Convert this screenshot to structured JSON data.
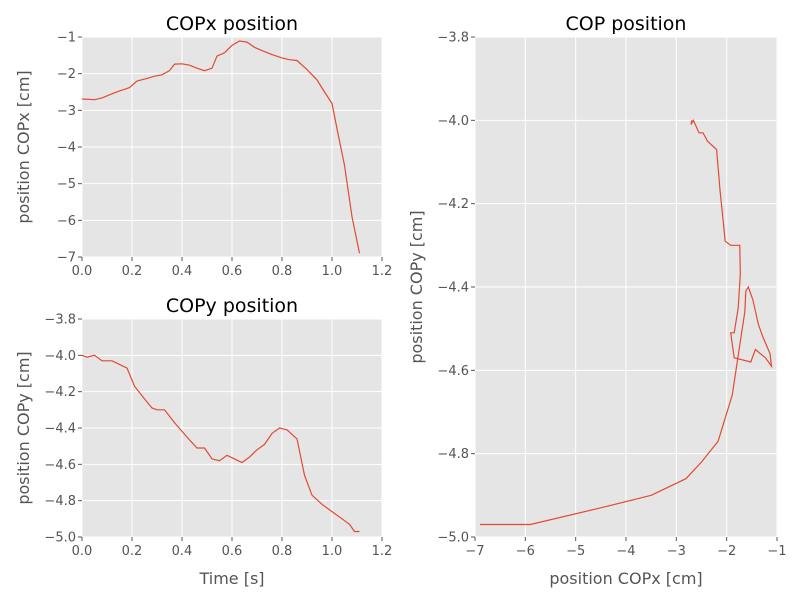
{
  "chart_data": [
    {
      "type": "line",
      "title": "COPx position",
      "xlabel": "",
      "ylabel": "position COPx [cm]",
      "xlim": [
        0,
        1.2
      ],
      "ylim": [
        -7,
        -1
      ],
      "xticks": [
        0.0,
        0.2,
        0.4,
        0.6,
        0.8,
        1.0,
        1.2
      ],
      "xtick_labels": [
        "0.0",
        "0.2",
        "0.4",
        "0.6",
        "0.8",
        "1.0",
        "1.2"
      ],
      "yticks": [
        -7,
        -6,
        -5,
        -4,
        -3,
        -2,
        -1
      ],
      "ytick_labels": [
        "−7",
        "−6",
        "−5",
        "−4",
        "−3",
        "−2",
        "−1"
      ],
      "grid": true,
      "color": "#e24a33",
      "x": [
        0.0,
        0.05,
        0.08,
        0.12,
        0.15,
        0.19,
        0.22,
        0.26,
        0.29,
        0.32,
        0.35,
        0.37,
        0.4,
        0.43,
        0.46,
        0.49,
        0.52,
        0.54,
        0.57,
        0.6,
        0.63,
        0.66,
        0.69,
        0.72,
        0.76,
        0.8,
        0.83,
        0.86,
        0.9,
        0.94,
        0.97,
        1.0,
        1.02,
        1.05,
        1.08,
        1.11
      ],
      "y": [
        -2.69,
        -2.71,
        -2.66,
        -2.55,
        -2.47,
        -2.38,
        -2.2,
        -2.13,
        -2.07,
        -2.03,
        -1.92,
        -1.74,
        -1.73,
        -1.77,
        -1.85,
        -1.92,
        -1.85,
        -1.52,
        -1.43,
        -1.23,
        -1.11,
        -1.14,
        -1.28,
        -1.37,
        -1.48,
        -1.57,
        -1.62,
        -1.64,
        -1.89,
        -2.17,
        -2.5,
        -2.81,
        -3.5,
        -4.5,
        -5.9,
        -6.9
      ]
    },
    {
      "type": "line",
      "title": "COPy position",
      "xlabel": "Time [s]",
      "ylabel": "position COPy [cm]",
      "xlim": [
        0,
        1.2
      ],
      "ylim": [
        -5.0,
        -3.8
      ],
      "xticks": [
        0.0,
        0.2,
        0.4,
        0.6,
        0.8,
        1.0,
        1.2
      ],
      "xtick_labels": [
        "0.0",
        "0.2",
        "0.4",
        "0.6",
        "0.8",
        "1.0",
        "1.2"
      ],
      "yticks": [
        -5.0,
        -4.8,
        -4.6,
        -4.4,
        -4.2,
        -4.0,
        -3.8
      ],
      "ytick_labels": [
        "−5.0",
        "−4.8",
        "−4.6",
        "−4.4",
        "−4.2",
        "−4.0",
        "−3.8"
      ],
      "grid": true,
      "color": "#e24a33",
      "x": [
        0.0,
        0.02,
        0.05,
        0.08,
        0.12,
        0.15,
        0.18,
        0.21,
        0.25,
        0.28,
        0.3,
        0.33,
        0.37,
        0.42,
        0.46,
        0.49,
        0.52,
        0.55,
        0.58,
        0.61,
        0.64,
        0.67,
        0.7,
        0.73,
        0.76,
        0.79,
        0.82,
        0.86,
        0.89,
        0.92,
        0.96,
        1.0,
        1.04,
        1.07,
        1.09,
        1.11
      ],
      "y": [
        -4.0,
        -4.01,
        -4.0,
        -4.03,
        -4.03,
        -4.05,
        -4.07,
        -4.17,
        -4.24,
        -4.29,
        -4.3,
        -4.3,
        -4.37,
        -4.45,
        -4.51,
        -4.51,
        -4.57,
        -4.58,
        -4.55,
        -4.57,
        -4.59,
        -4.56,
        -4.52,
        -4.49,
        -4.43,
        -4.4,
        -4.41,
        -4.46,
        -4.66,
        -4.77,
        -4.82,
        -4.86,
        -4.9,
        -4.93,
        -4.97,
        -4.97
      ]
    },
    {
      "type": "line",
      "title": "COP position",
      "xlabel": "position COPx [cm]",
      "ylabel": "position COPy [cm]",
      "xlim": [
        -7,
        -1
      ],
      "ylim": [
        -5.0,
        -3.8
      ],
      "xticks": [
        -7,
        -6,
        -5,
        -4,
        -3,
        -2,
        -1
      ],
      "xtick_labels": [
        "−7",
        "−6",
        "−5",
        "−4",
        "−3",
        "−2",
        "−1"
      ],
      "yticks": [
        -5.0,
        -4.8,
        -4.6,
        -4.4,
        -4.2,
        -4.0,
        -3.8
      ],
      "ytick_labels": [
        "−5.0",
        "−4.8",
        "−4.6",
        "−4.4",
        "−4.2",
        "−4.0",
        "−3.8"
      ],
      "grid": true,
      "color": "#e24a33",
      "x": [
        -2.69,
        -2.71,
        -2.66,
        -2.55,
        -2.47,
        -2.38,
        -2.2,
        -2.13,
        -2.07,
        -2.03,
        -1.92,
        -1.74,
        -1.73,
        -1.77,
        -1.85,
        -1.92,
        -1.85,
        -1.52,
        -1.43,
        -1.23,
        -1.11,
        -1.14,
        -1.28,
        -1.37,
        -1.48,
        -1.57,
        -1.62,
        -1.64,
        -1.89,
        -2.17,
        -2.5,
        -2.81,
        -3.5,
        -4.5,
        -5.9,
        -6.9
      ],
      "y": [
        -4.0,
        -4.01,
        -4.0,
        -4.03,
        -4.03,
        -4.05,
        -4.07,
        -4.17,
        -4.24,
        -4.29,
        -4.3,
        -4.3,
        -4.37,
        -4.45,
        -4.51,
        -4.51,
        -4.57,
        -4.58,
        -4.55,
        -4.57,
        -4.59,
        -4.56,
        -4.52,
        -4.49,
        -4.43,
        -4.4,
        -4.41,
        -4.46,
        -4.66,
        -4.77,
        -4.82,
        -4.86,
        -4.9,
        -4.93,
        -4.97,
        -4.97
      ]
    }
  ]
}
